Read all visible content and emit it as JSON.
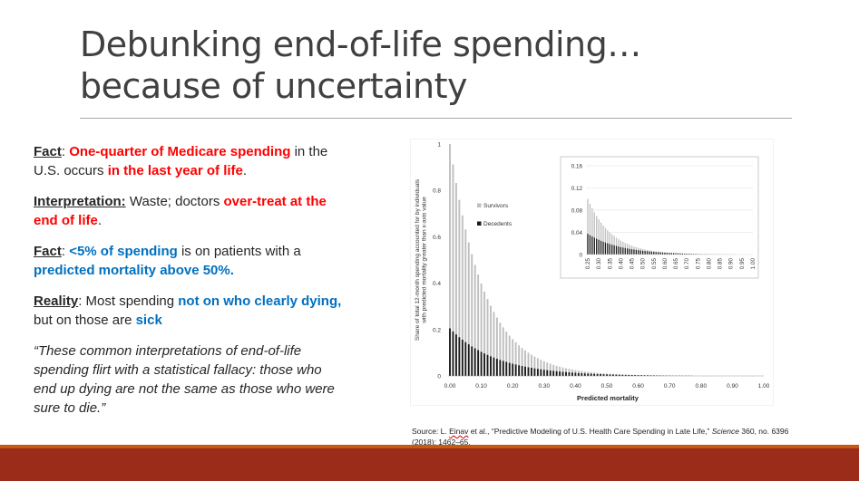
{
  "title": {
    "line1": "Debunking end-of-life spending…",
    "line2": "because of uncertainty"
  },
  "points": {
    "p1": {
      "label": "Fact",
      "colon": ": ",
      "red1": "One-quarter of Medicare spending",
      "mid": " in the U.S. occurs ",
      "red2": "in the last year of life",
      "end": "."
    },
    "p2": {
      "label": "Interpretation:",
      "mid": " Waste; doctors ",
      "red1": "over-treat at the end of life",
      "end": "."
    },
    "p3": {
      "label": "Fact",
      "colon": ": ",
      "blue1": "<5% of spending",
      "mid": " is on patients with a ",
      "blue2": "predicted mortality above 50%."
    },
    "p4": {
      "label": "Reality",
      "colon": ": Most spending ",
      "blue1": "not on who clearly dying,",
      "mid": " but on those are ",
      "blue2": "sick"
    },
    "quote": "“These common interpretations of end-of-life spending flirt with a statistical fallacy: those who end up dying are not the same as those who were sure to die.”"
  },
  "source": {
    "pre": "Source: L. ",
    "name": "Einav",
    "post": " et al., “Predictive Modeling of U.S. Health Care Spending in Late Life,” ",
    "journal": "Science",
    "tail": " 360, no. 6396 (2018): 1462–65."
  },
  "colors": {
    "red": "#ff0000",
    "blue": "#0070c0",
    "survivors": "#bfbfbf",
    "decedents": "#1a1a1a",
    "footer": "#9b2c1a"
  },
  "chart_data": {
    "type": "bar",
    "stacked": true,
    "ylabel": "Share of total 12-month spending accounted for by individuals with predicted mortality greater than x-axis value",
    "xlabel": "Predicted mortality",
    "xlim": [
      0,
      1
    ],
    "ylim": [
      0,
      1
    ],
    "xticks": [
      "0.00",
      "0.10",
      "0.20",
      "0.30",
      "0.40",
      "0.50",
      "0.60",
      "0.70",
      "0.80",
      "0.90",
      "1.00"
    ],
    "yticks": [
      "0",
      "0.2",
      "0.4",
      "0.6",
      "0.8",
      "1"
    ],
    "legend": [
      {
        "name": "Survivors"
      },
      {
        "name": "Decedents"
      }
    ],
    "legend_position": "top-center",
    "series_model": {
      "total_at_0": 1.0,
      "decedents_at_0": 0.205,
      "decay_total": 9.2,
      "decay_decedents": 6.8,
      "step": 0.01
    },
    "inset": {
      "xlim": [
        0.25,
        1.0
      ],
      "ylim": [
        0,
        0.16
      ],
      "xticks": [
        "0.25",
        "0.30",
        "0.35",
        "0.40",
        "0.45",
        "0.50",
        "0.55",
        "0.60",
        "0.65",
        "0.70",
        "0.75",
        "0.80",
        "0.85",
        "0.90",
        "0.95",
        "1.00"
      ],
      "yticks": [
        "0",
        "0.04",
        "0.08",
        "0.12",
        "0.16"
      ]
    }
  }
}
